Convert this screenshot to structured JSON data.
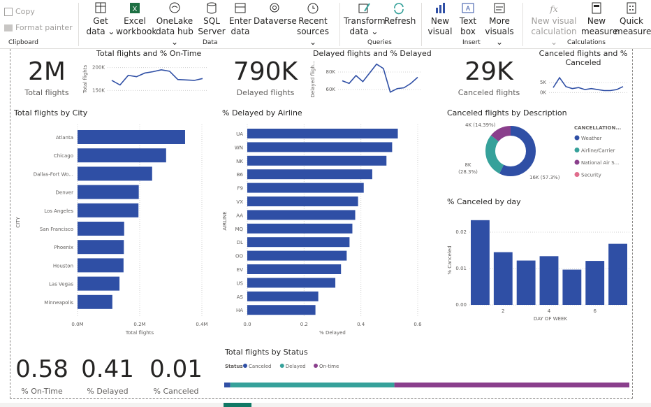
{
  "ribbon": {
    "clipboard": {
      "copy": "Copy",
      "format_painter": "Format painter",
      "group": "Clipboard"
    },
    "data": {
      "get_data": [
        "Get",
        "data"
      ],
      "excel": [
        "Excel",
        "workbook"
      ],
      "onelake": [
        "OneLake",
        "data hub"
      ],
      "sql": [
        "SQL",
        "Server"
      ],
      "enter": [
        "Enter",
        "data"
      ],
      "dataverse": "Dataverse",
      "recent": [
        "Recent",
        "sources"
      ],
      "group": "Data"
    },
    "queries": {
      "transform": [
        "Transform",
        "data"
      ],
      "refresh": "Refresh",
      "group": "Queries"
    },
    "insert": {
      "new_visual": [
        "New",
        "visual"
      ],
      "text_box": [
        "Text",
        "box"
      ],
      "more_visuals": [
        "More",
        "visuals"
      ],
      "group": "Insert"
    },
    "calculations": {
      "new_visual_calc": [
        "New visual",
        "calculation"
      ],
      "new_measure": [
        "New",
        "measure"
      ],
      "quick_measure": [
        "Quick",
        "measure"
      ],
      "group": "Calculations"
    }
  },
  "colors": {
    "blue": "#2f4fa5",
    "teal": "#36a19a",
    "purple": "#8a3f8c",
    "pink": "#e06c8c",
    "line": "#2f4fa5"
  },
  "kpis": {
    "total": {
      "value": "2M",
      "label": "Total flights"
    },
    "delayed": {
      "value": "790K",
      "label": "Delayed flights"
    },
    "canceled": {
      "value": "29K",
      "label": "Canceled flights"
    },
    "on_time_pct": {
      "value": "0.58",
      "label": "% On-Time"
    },
    "delayed_pct": {
      "value": "0.41",
      "label": "% Delayed"
    },
    "canceled_pct": {
      "value": "0.01",
      "label": "% Canceled"
    }
  },
  "chart_data": [
    {
      "id": "total-ontime",
      "type": "line",
      "title": "Total flights and % On-Time",
      "ylabel": "Total flights",
      "yticks": [
        "200K",
        "150K"
      ],
      "ylim": [
        140000,
        210000
      ],
      "values": [
        172000,
        162000,
        183000,
        180000,
        188000,
        191000,
        195000,
        192000,
        174000,
        173000,
        172000,
        176000
      ]
    },
    {
      "id": "delayed-pct",
      "type": "line",
      "title": "Delayed flights and % Delayed",
      "ylabel": "Delayed fligh...",
      "yticks": [
        "80K",
        "60K"
      ],
      "ylim": [
        52000,
        92000
      ],
      "values": [
        70000,
        67000,
        76000,
        69000,
        79000,
        89000,
        84000,
        57000,
        61000,
        62000,
        67000,
        74000
      ]
    },
    {
      "id": "canceled-pct",
      "type": "line",
      "title": "Canceled flights and % Canceled",
      "ylabel": "",
      "yticks": [
        "5K",
        "0K"
      ],
      "ylim": [
        -2000,
        10000
      ],
      "values": [
        2500,
        7500,
        3000,
        2000,
        2500,
        1500,
        2000,
        1500,
        1000,
        1000,
        1500,
        3000
      ]
    },
    {
      "id": "city",
      "type": "bar",
      "orientation": "horizontal",
      "title": "Total flights by City",
      "xlabel": "Total flights",
      "ylabel": "CITY",
      "categories": [
        "Atlanta",
        "Chicago",
        "Dallas-Fort Wo...",
        "Denver",
        "Los Angeles",
        "San Francisco",
        "Phoenix",
        "Houston",
        "Las Vegas",
        "Minneapolis"
      ],
      "values": [
        346000,
        285000,
        240000,
        197000,
        196000,
        150000,
        149000,
        148000,
        135000,
        112000
      ],
      "xlim": [
        0,
        400000
      ],
      "xticks": [
        "0.0M",
        "0.2M",
        "0.4M"
      ]
    },
    {
      "id": "airline",
      "type": "bar",
      "orientation": "horizontal",
      "title": "% Delayed by Airline",
      "xlabel": "% Delayed",
      "ylabel": "AIRLINE",
      "categories": [
        "UA",
        "WN",
        "NK",
        "B6",
        "F9",
        "VX",
        "AA",
        "MQ",
        "DL",
        "OO",
        "EV",
        "US",
        "AS",
        "HA"
      ],
      "values": [
        0.53,
        0.51,
        0.49,
        0.44,
        0.41,
        0.39,
        0.38,
        0.37,
        0.36,
        0.35,
        0.33,
        0.31,
        0.25,
        0.24
      ],
      "xlim": [
        0,
        0.6
      ],
      "xticks": [
        "0.0",
        "0.2",
        "0.4",
        "0.6"
      ]
    },
    {
      "id": "cancel-desc",
      "type": "pie",
      "title": "Canceled flights by Description",
      "legend_title": "CANCELLATION...",
      "slices": [
        {
          "name": "Weather",
          "value": 57.3,
          "label": "16K (57.3%)"
        },
        {
          "name": "Airline/Carrier",
          "value": 28.3,
          "label": "8K (28.3%)"
        },
        {
          "name": "National Air S...",
          "value": 14.39,
          "label": "4K (14.39%)"
        },
        {
          "name": "Security",
          "value": 0.01,
          "label": ""
        }
      ]
    },
    {
      "id": "cancel-day",
      "type": "bar",
      "title": "% Canceled by day",
      "xlabel": "DAY OF WEEK",
      "ylabel": "% Canceled",
      "x": [
        1,
        2,
        3,
        4,
        5,
        6,
        7
      ],
      "values": [
        0.0233,
        0.0145,
        0.0122,
        0.0134,
        0.0097,
        0.0121,
        0.0168
      ],
      "ylim": [
        0,
        0.025
      ],
      "yticks": [
        "0.00",
        "0.01",
        "0.02"
      ],
      "xticks": [
        "2",
        "4",
        "6"
      ]
    },
    {
      "id": "status",
      "type": "bar",
      "orientation": "stacked-horizontal",
      "title": "Total flights by Status",
      "legend_title": "Status",
      "series": [
        {
          "name": "Canceled",
          "value": 0.015
        },
        {
          "name": "Delayed",
          "value": 0.405
        },
        {
          "name": "On-time",
          "value": 0.58
        }
      ]
    }
  ]
}
